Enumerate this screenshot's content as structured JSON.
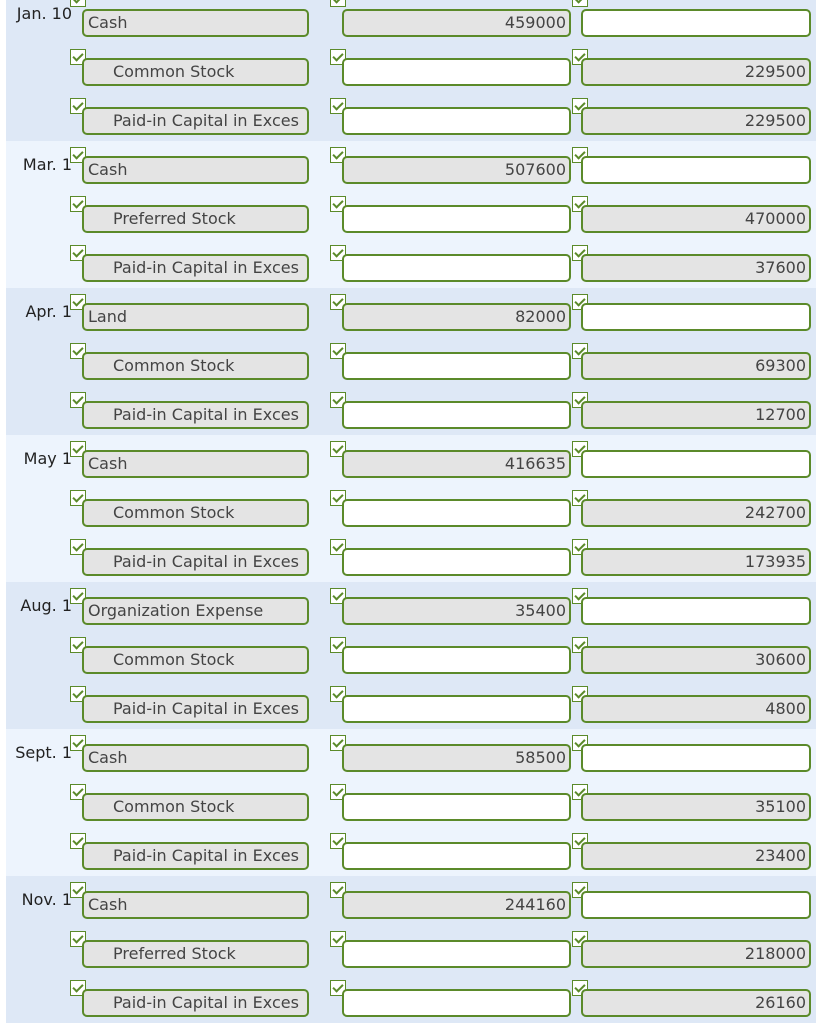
{
  "entries": [
    {
      "date": "Jan. 10",
      "lines": [
        {
          "account": "Cash",
          "debit": "459000",
          "credit": ""
        },
        {
          "account": "Common Stock",
          "debit": "",
          "credit": "229500"
        },
        {
          "account": "Paid-in Capital in Exces",
          "debit": "",
          "credit": "229500"
        }
      ]
    },
    {
      "date": "Mar. 1",
      "lines": [
        {
          "account": "Cash",
          "debit": "507600",
          "credit": ""
        },
        {
          "account": "Preferred Stock",
          "debit": "",
          "credit": "470000"
        },
        {
          "account": "Paid-in Capital in Exces",
          "debit": "",
          "credit": "37600"
        }
      ]
    },
    {
      "date": "Apr. 1",
      "lines": [
        {
          "account": "Land",
          "debit": "82000",
          "credit": ""
        },
        {
          "account": "Common Stock",
          "debit": "",
          "credit": "69300"
        },
        {
          "account": "Paid-in Capital in Exces",
          "debit": "",
          "credit": "12700"
        }
      ]
    },
    {
      "date": "May 1",
      "lines": [
        {
          "account": "Cash",
          "debit": "416635",
          "credit": ""
        },
        {
          "account": "Common Stock",
          "debit": "",
          "credit": "242700"
        },
        {
          "account": "Paid-in Capital in Exces",
          "debit": "",
          "credit": "173935"
        }
      ]
    },
    {
      "date": "Aug. 1",
      "lines": [
        {
          "account": "Organization Expense",
          "debit": "35400",
          "credit": ""
        },
        {
          "account": "Common Stock",
          "debit": "",
          "credit": "30600"
        },
        {
          "account": "Paid-in Capital in Exces",
          "debit": "",
          "credit": "4800"
        }
      ]
    },
    {
      "date": "Sept. 1",
      "lines": [
        {
          "account": "Cash",
          "debit": "58500",
          "credit": ""
        },
        {
          "account": "Common Stock",
          "debit": "",
          "credit": "35100"
        },
        {
          "account": "Paid-in Capital in Exces",
          "debit": "",
          "credit": "23400"
        }
      ]
    },
    {
      "date": "Nov. 1",
      "lines": [
        {
          "account": "Cash",
          "debit": "244160",
          "credit": ""
        },
        {
          "account": "Preferred Stock",
          "debit": "",
          "credit": "218000"
        },
        {
          "account": "Paid-in Capital in Exces",
          "debit": "",
          "credit": "26160"
        }
      ]
    }
  ]
}
